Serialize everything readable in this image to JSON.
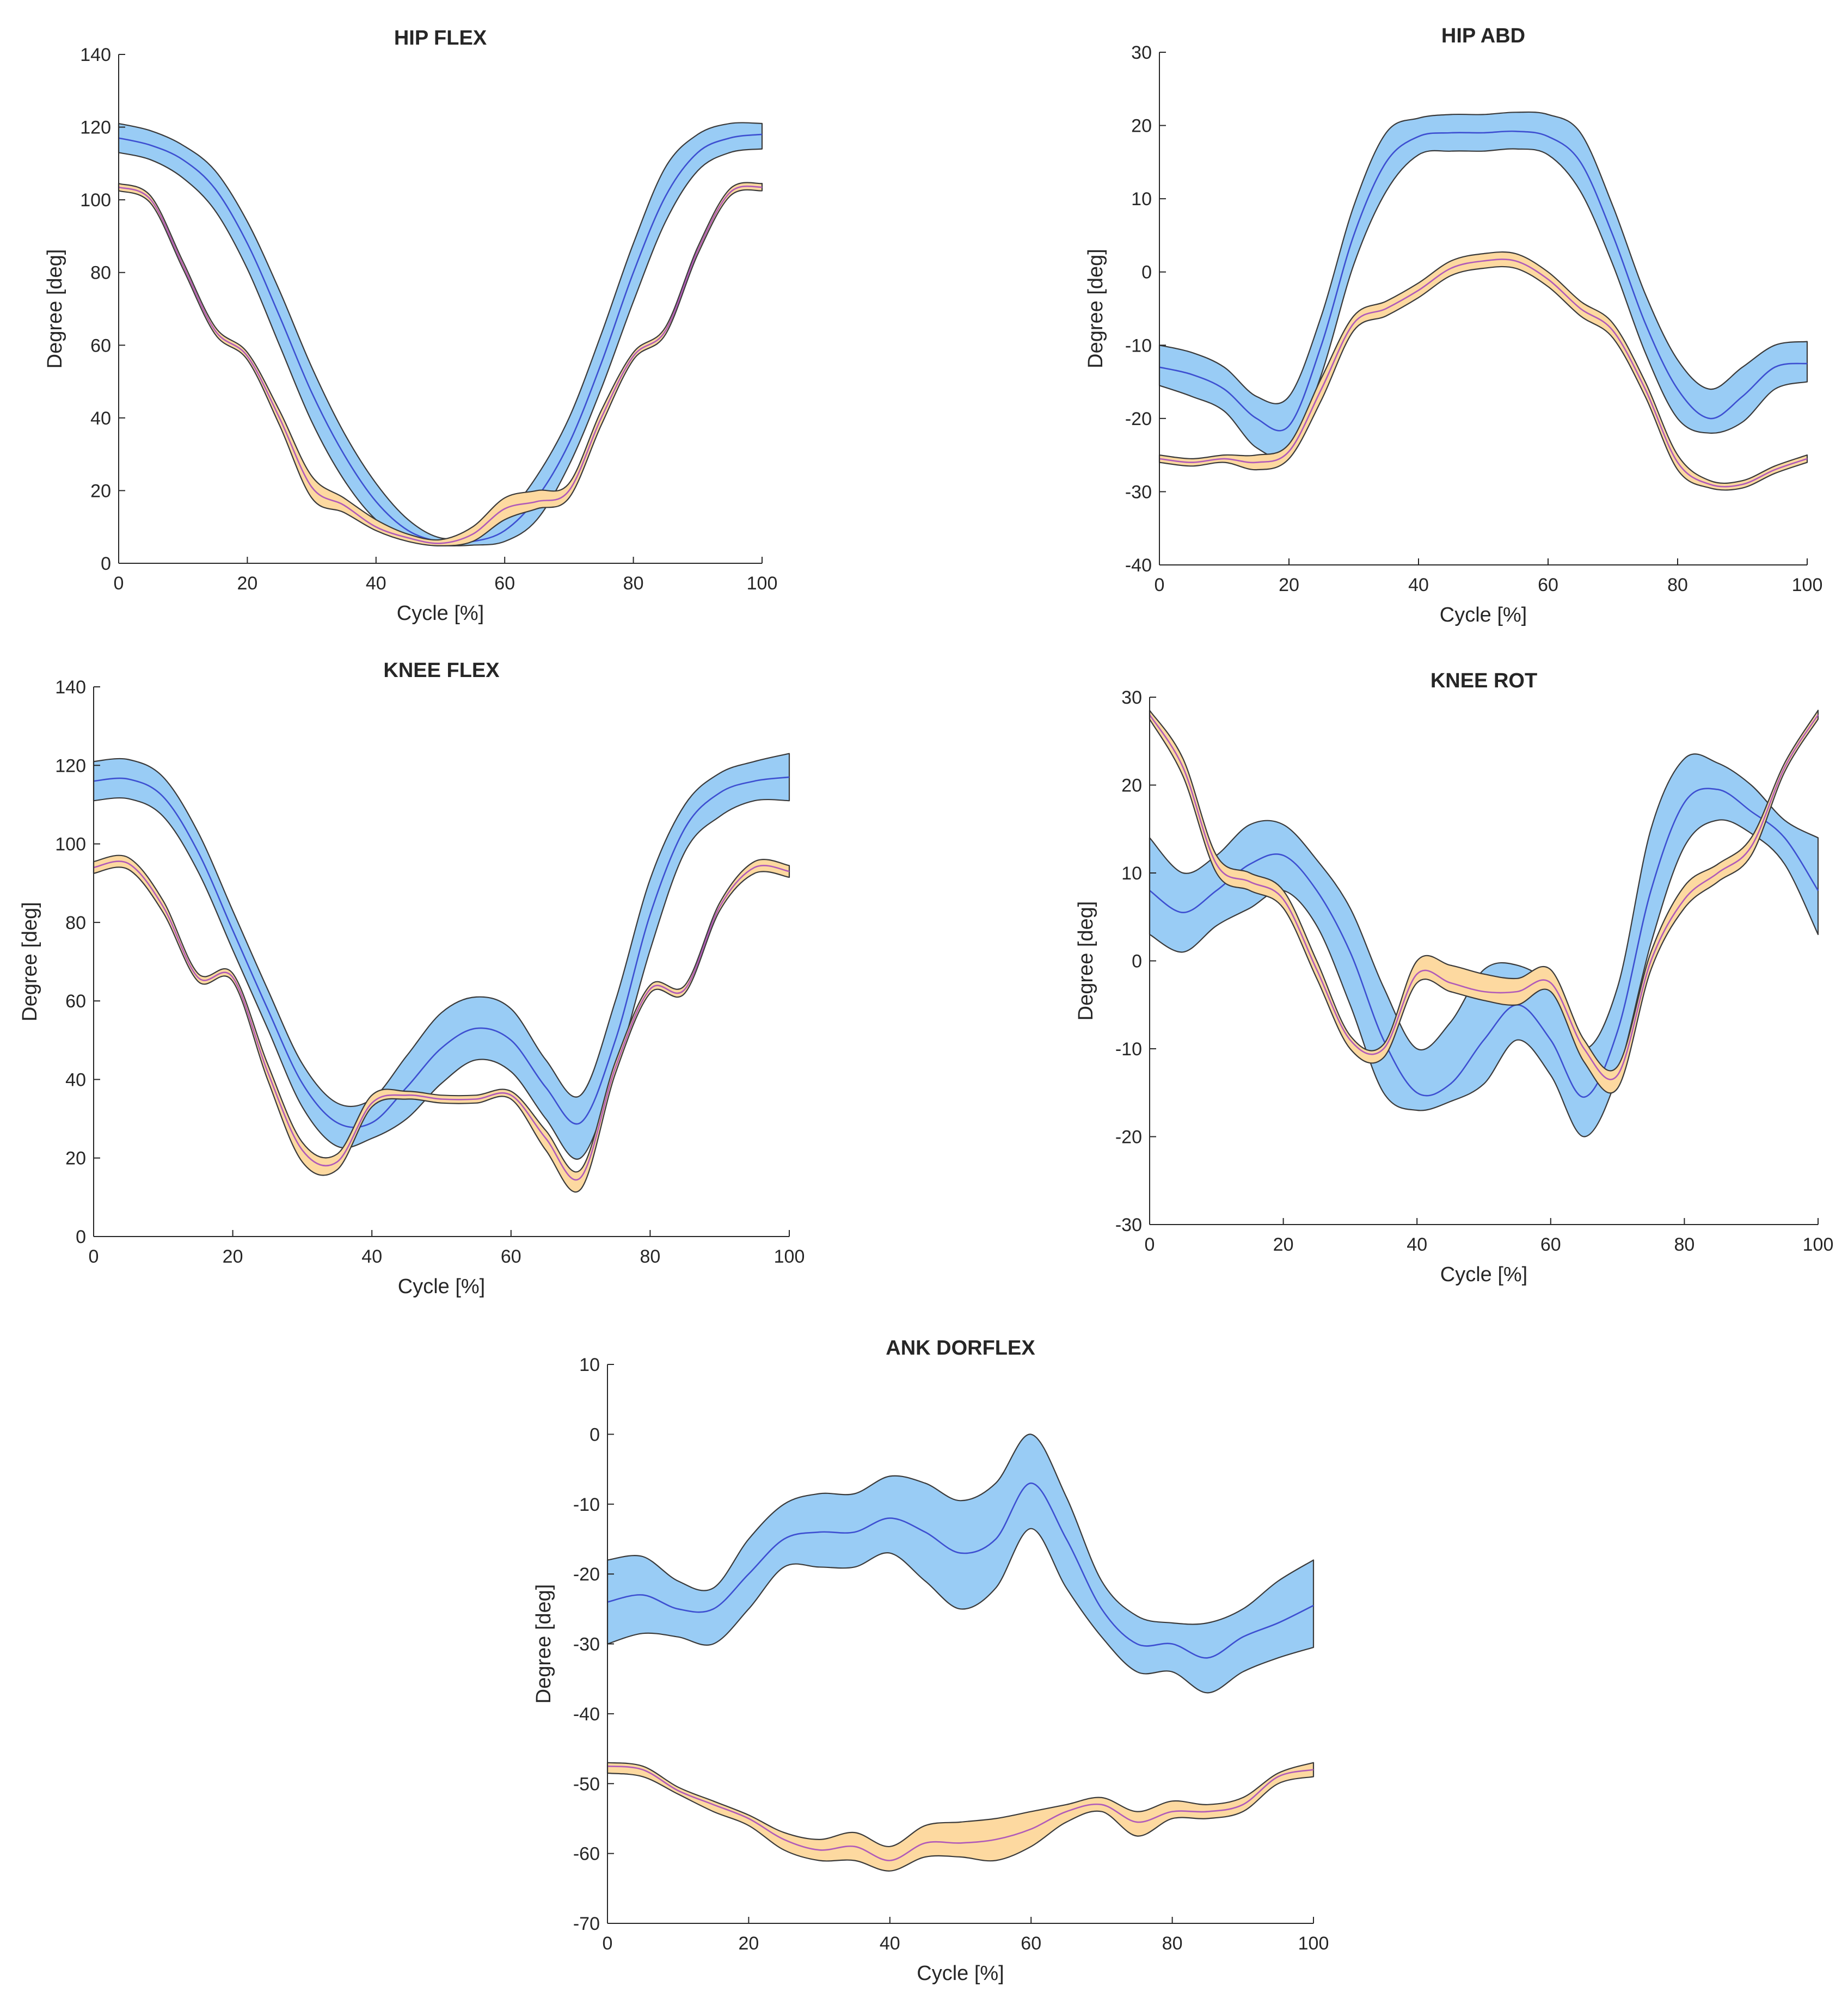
{
  "colors": {
    "band_blue": "#99ccf5",
    "line_blue": "#3d4fd1",
    "band_orange": "#fdd9a0",
    "line_purple": "#b05ab8",
    "edge": "#3a3a3a",
    "axis": "#262626"
  },
  "chart_data": [
    {
      "id": "hip-flex",
      "type": "line",
      "title": "HIP FLEX",
      "xlabel": "Cycle [%]",
      "ylabel": "Degree [deg]",
      "xlim": [
        0,
        100
      ],
      "ylim": [
        0,
        140
      ],
      "xticks": [
        0,
        20,
        40,
        60,
        80,
        100
      ],
      "yticks": [
        0,
        20,
        40,
        60,
        80,
        100,
        120,
        140
      ],
      "x": [
        0,
        5,
        10,
        15,
        20,
        25,
        30,
        35,
        40,
        45,
        50,
        55,
        60,
        65,
        70,
        75,
        80,
        85,
        90,
        95,
        100
      ],
      "series": [
        {
          "name": "blue",
          "mean": [
            117,
            115,
            111,
            103,
            88,
            68,
            47,
            30,
            17,
            9,
            6,
            6,
            9,
            18,
            33,
            55,
            80,
            101,
            113,
            117,
            118
          ],
          "upper": [
            121,
            119,
            115,
            108,
            94,
            75,
            54,
            36,
            22,
            12,
            7,
            8,
            13,
            24,
            40,
            63,
            88,
            109,
            118,
            121,
            121
          ],
          "lower": [
            113,
            111,
            106,
            97,
            81,
            60,
            39,
            23,
            12,
            7,
            5,
            5,
            6,
            12,
            27,
            48,
            72,
            94,
            108,
            113,
            114
          ]
        },
        {
          "name": "orange",
          "mean": [
            103.5,
            100,
            82,
            64,
            57,
            40,
            21,
            16,
            10,
            7,
            5.5,
            8,
            15,
            17,
            20,
            40,
            57,
            64,
            86,
            102,
            103.5
          ],
          "upper": [
            104.5,
            101,
            83,
            65,
            58,
            42,
            24,
            18,
            12,
            8,
            6.5,
            10,
            18,
            20,
            22,
            42,
            58,
            65,
            87,
            103,
            104.5
          ],
          "lower": [
            102.5,
            99,
            81,
            63,
            56,
            38,
            18,
            14,
            9,
            6,
            4.8,
            6,
            12,
            15,
            18,
            38,
            56,
            63,
            85,
            101,
            102.5
          ]
        }
      ]
    },
    {
      "id": "hip-abd",
      "type": "line",
      "title": "HIP ABD",
      "xlabel": "Cycle [%]",
      "ylabel": "Degree [deg]",
      "xlim": [
        0,
        100
      ],
      "ylim": [
        -40,
        30
      ],
      "xticks": [
        0,
        20,
        40,
        60,
        80,
        100
      ],
      "yticks": [
        -40,
        -30,
        -20,
        -10,
        0,
        10,
        20,
        30
      ],
      "x": [
        0,
        5,
        10,
        15,
        20,
        25,
        30,
        35,
        40,
        45,
        50,
        55,
        60,
        65,
        70,
        75,
        80,
        85,
        90,
        95,
        100
      ],
      "series": [
        {
          "name": "blue",
          "mean": [
            -13,
            -14,
            -16,
            -20,
            -21,
            -10,
            5,
            15,
            18.5,
            19,
            19,
            19.2,
            18.5,
            15,
            5,
            -7,
            -16,
            -20,
            -17,
            -13,
            -12.5
          ],
          "upper": [
            -10,
            -11,
            -13,
            -17,
            -17,
            -6,
            9,
            19,
            21,
            21.5,
            21.5,
            21.8,
            21.5,
            19,
            9,
            -3,
            -12,
            -16,
            -13,
            -10,
            -9.5
          ],
          "lower": [
            -15.5,
            -17,
            -19,
            -24,
            -24.5,
            -14,
            1,
            11,
            16,
            16.5,
            16.5,
            16.8,
            16,
            11,
            1,
            -11,
            -20,
            -22,
            -20.5,
            -16,
            -15
          ]
        },
        {
          "name": "orange",
          "mean": [
            -25.5,
            -26,
            -25.5,
            -26,
            -24.5,
            -16,
            -7,
            -5,
            -2.5,
            0.5,
            1.5,
            1.5,
            -1,
            -5,
            -8,
            -16,
            -26,
            -29,
            -29,
            -27,
            -25.5
          ],
          "upper": [
            -25,
            -25.5,
            -25,
            -25,
            -23.5,
            -14.5,
            -6,
            -4,
            -1.5,
            1.5,
            2.5,
            2.5,
            0,
            -4,
            -7,
            -15,
            -25,
            -28.5,
            -28.5,
            -26.5,
            -25
          ],
          "lower": [
            -26,
            -26.5,
            -26,
            -27,
            -25.5,
            -17.5,
            -8,
            -6,
            -3.5,
            -0.5,
            0.5,
            0.5,
            -2,
            -6,
            -9,
            -17,
            -27,
            -29.5,
            -29.5,
            -27.5,
            -26
          ]
        }
      ]
    },
    {
      "id": "knee-flex",
      "type": "line",
      "title": "KNEE FLEX",
      "xlabel": "Cycle [%]",
      "ylabel": "Degree [deg]",
      "xlim": [
        0,
        100
      ],
      "ylim": [
        0,
        140
      ],
      "xticks": [
        0,
        20,
        40,
        60,
        80,
        100
      ],
      "yticks": [
        0,
        20,
        40,
        60,
        80,
        100,
        120,
        140
      ],
      "x": [
        0,
        5,
        10,
        15,
        20,
        25,
        30,
        35,
        40,
        45,
        50,
        55,
        60,
        65,
        70,
        75,
        80,
        85,
        90,
        95,
        100
      ],
      "series": [
        {
          "name": "blue",
          "mean": [
            116,
            116.5,
            112,
            98,
            78,
            58,
            39,
            29,
            29,
            38,
            48,
            53,
            50,
            38,
            29,
            50,
            82,
            104,
            113,
            116,
            117
          ],
          "upper": [
            121,
            121.5,
            117,
            103,
            83,
            63,
            44,
            34,
            35,
            46,
            57,
            61,
            58,
            45,
            36,
            60,
            91,
            110,
            118,
            121,
            123
          ],
          "lower": [
            111,
            111.5,
            107,
            93,
            73,
            53,
            33,
            23,
            25,
            30,
            39,
            45,
            42,
            30,
            20,
            42,
            73,
            98,
            107,
            111,
            111
          ]
        },
        {
          "name": "orange",
          "mean": [
            94,
            95,
            84,
            66,
            66,
            42,
            22,
            19,
            34,
            36,
            35,
            35,
            36,
            25,
            15,
            43,
            63,
            63,
            84,
            94,
            93
          ],
          "upper": [
            95.5,
            96.5,
            85.5,
            67,
            67,
            44,
            24,
            21,
            36,
            37,
            36,
            36,
            37,
            27,
            17,
            44.5,
            64,
            64,
            85,
            95.5,
            94.5
          ],
          "lower": [
            92.5,
            93.5,
            82.5,
            65,
            65,
            40,
            19,
            17,
            33,
            35,
            34,
            34,
            35,
            22,
            12,
            41.5,
            62,
            62,
            83,
            92.5,
            91.5
          ]
        }
      ]
    },
    {
      "id": "knee-rot",
      "type": "line",
      "title": "KNEE ROT",
      "xlabel": "Cycle [%]",
      "ylabel": "Degree [deg]",
      "xlim": [
        0,
        100
      ],
      "ylim": [
        -30,
        30
      ],
      "xticks": [
        0,
        20,
        40,
        60,
        80,
        100
      ],
      "yticks": [
        -30,
        -20,
        -10,
        0,
        10,
        20,
        30
      ],
      "x": [
        0,
        5,
        10,
        15,
        20,
        25,
        30,
        35,
        40,
        45,
        50,
        55,
        60,
        65,
        70,
        75,
        80,
        85,
        90,
        95,
        100
      ],
      "series": [
        {
          "name": "blue",
          "mean": [
            8,
            5.5,
            8,
            11,
            12,
            8,
            1,
            -9,
            -15,
            -14,
            -9,
            -5,
            -9,
            -15.5,
            -8,
            8,
            18,
            19.5,
            17,
            14,
            8
          ],
          "upper": [
            14,
            10,
            12,
            15.5,
            15.5,
            11.5,
            6,
            -3,
            -10,
            -7,
            -1,
            -0.5,
            -3,
            -10,
            -3,
            15,
            23,
            22.5,
            20,
            16,
            14
          ],
          "lower": [
            3,
            1,
            4,
            6,
            8,
            4,
            -5,
            -15,
            -17,
            -16,
            -14,
            -9,
            -13,
            -20,
            -13,
            2,
            13,
            16,
            14.5,
            11,
            3
          ]
        },
        {
          "name": "orange",
          "mean": [
            28,
            22,
            11,
            9,
            7,
            -1,
            -9,
            -10,
            -1.5,
            -2.5,
            -3.5,
            -3.5,
            -2.5,
            -10,
            -13,
            0,
            7,
            10,
            13,
            22,
            28
          ],
          "upper": [
            28.5,
            23,
            12,
            10,
            8,
            0,
            -8.5,
            -9.5,
            0,
            -0.5,
            -1.5,
            -2,
            -1,
            -9,
            -12,
            1,
            8.5,
            11,
            14,
            22.5,
            28.5
          ],
          "lower": [
            27.5,
            21,
            10,
            8,
            6,
            -2,
            -10,
            -11,
            -2.5,
            -3.5,
            -4.5,
            -5,
            -3.5,
            -11.5,
            -14.5,
            -1,
            6,
            9,
            12,
            21.5,
            27.5
          ]
        }
      ]
    },
    {
      "id": "ank-dorflex",
      "type": "line",
      "title": "ANK DORFLEX",
      "xlabel": "Cycle [%]",
      "ylabel": "Degree [deg]",
      "xlim": [
        0,
        100
      ],
      "ylim": [
        -70,
        10
      ],
      "xticks": [
        0,
        20,
        40,
        60,
        80,
        100
      ],
      "yticks": [
        -70,
        -60,
        -50,
        -40,
        -30,
        -20,
        -10,
        0,
        10
      ],
      "x": [
        0,
        5,
        10,
        15,
        20,
        25,
        30,
        35,
        40,
        45,
        50,
        55,
        60,
        65,
        70,
        75,
        80,
        85,
        90,
        95,
        100
      ],
      "series": [
        {
          "name": "blue",
          "mean": [
            -24,
            -23,
            -25,
            -25,
            -20,
            -15,
            -14,
            -14,
            -12,
            -14,
            -17,
            -15,
            -7,
            -15,
            -25,
            -30,
            -30,
            -32,
            -29,
            -27,
            -24.5
          ],
          "upper": [
            -18,
            -17.5,
            -21,
            -22,
            -15,
            -10,
            -8.5,
            -8.5,
            -6,
            -7,
            -9.5,
            -7,
            0,
            -9,
            -21,
            -26,
            -27,
            -27,
            -25,
            -21,
            -18
          ],
          "lower": [
            -30,
            -28.5,
            -29,
            -30,
            -25,
            -19,
            -19,
            -19,
            -17,
            -21,
            -25,
            -22,
            -13.5,
            -22,
            -29,
            -34,
            -34,
            -37,
            -34,
            -32,
            -30.5
          ]
        },
        {
          "name": "orange",
          "mean": [
            -47.5,
            -48,
            -51,
            -53,
            -55,
            -58,
            -59.5,
            -59,
            -61,
            -58.5,
            -58.5,
            -58,
            -56.5,
            -54,
            -53,
            -55.5,
            -54,
            -54,
            -53,
            -49,
            -48
          ],
          "upper": [
            -47,
            -47.5,
            -50.5,
            -52.5,
            -54.5,
            -57,
            -58,
            -57,
            -59,
            -56,
            -55.5,
            -55,
            -54,
            -53,
            -52,
            -54,
            -52.5,
            -53,
            -52,
            -48.5,
            -47
          ],
          "lower": [
            -48.5,
            -49,
            -51.5,
            -54,
            -56,
            -59.5,
            -61,
            -61,
            -62.5,
            -60.5,
            -60.5,
            -61,
            -59,
            -55.5,
            -54,
            -57.5,
            -55,
            -55,
            -54,
            -50,
            -49
          ]
        }
      ]
    }
  ]
}
